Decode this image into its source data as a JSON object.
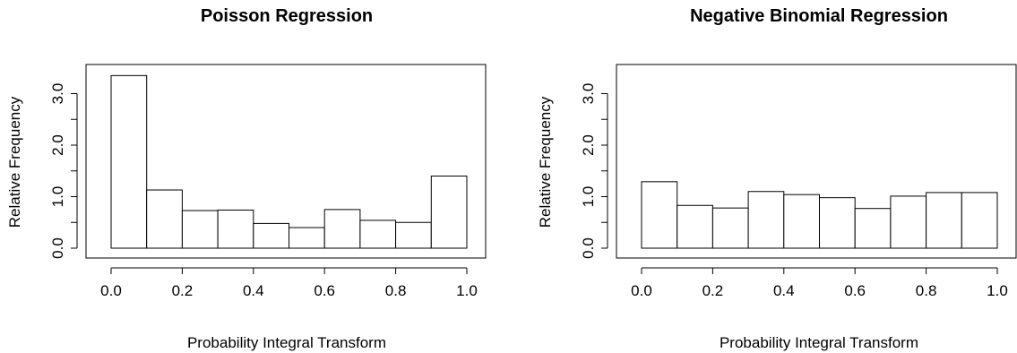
{
  "chart_data": [
    {
      "type": "bar",
      "title": "Poisson Regression",
      "xlabel": "Probability Integral Transform",
      "ylabel": "Relative Frequency",
      "xlim": [
        0.0,
        1.0
      ],
      "ylim": [
        0.0,
        3.5
      ],
      "x_ticks": [
        "0.0",
        "0.2",
        "0.4",
        "0.6",
        "0.8",
        "1.0"
      ],
      "y_ticks": [
        "0.0",
        "1.0",
        "2.0",
        "3.0"
      ],
      "bin_edges": [
        0.0,
        0.1,
        0.2,
        0.3,
        0.4,
        0.5,
        0.6,
        0.7,
        0.8,
        0.9,
        1.0
      ],
      "values": [
        3.35,
        1.13,
        0.73,
        0.74,
        0.48,
        0.4,
        0.75,
        0.54,
        0.5,
        1.4
      ],
      "grid": false
    },
    {
      "type": "bar",
      "title": "Negative Binomial Regression",
      "xlabel": "Probability Integral Transform",
      "ylabel": "Relative Frequency",
      "xlim": [
        0.0,
        1.0
      ],
      "ylim": [
        0.0,
        3.5
      ],
      "x_ticks": [
        "0.0",
        "0.2",
        "0.4",
        "0.6",
        "0.8",
        "1.0"
      ],
      "y_ticks": [
        "0.0",
        "1.0",
        "2.0",
        "3.0"
      ],
      "bin_edges": [
        0.0,
        0.1,
        0.2,
        0.3,
        0.4,
        0.5,
        0.6,
        0.7,
        0.8,
        0.9,
        1.0
      ],
      "values": [
        1.29,
        0.83,
        0.78,
        1.1,
        1.04,
        0.98,
        0.77,
        1.01,
        1.08,
        1.08
      ],
      "grid": false
    }
  ]
}
